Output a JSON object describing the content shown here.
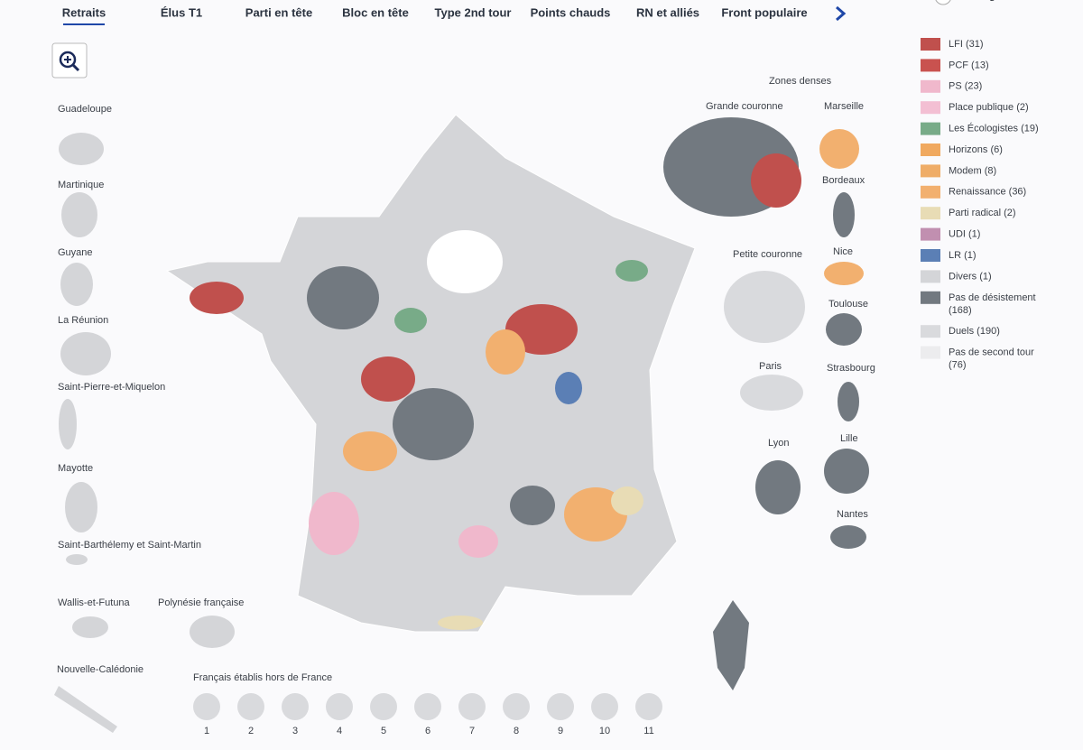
{
  "tabs": {
    "items": [
      "Retraits",
      "Élus T1",
      "Parti en tête",
      "Bloc en tête",
      "Type 2nd tour",
      "Points chauds",
      "RN et alliés",
      "Front populaire"
    ],
    "active": 0
  },
  "toggle": "Cartogramme",
  "overseas": [
    "Guadeloupe",
    "Martinique",
    "Guyane",
    "La Réunion",
    "Saint-Pierre-et-Miquelon",
    "Mayotte",
    "Saint-Barthélemy et Saint-Martin",
    "Wallis-et-Futuna",
    "Polynésie française",
    "Nouvelle-Calédonie"
  ],
  "dense": {
    "title": "Zones denses",
    "zones": [
      "Grande couronne",
      "Marseille",
      "Bordeaux",
      "Petite couronne",
      "Nice",
      "Toulouse",
      "Paris",
      "Strasbourg",
      "Lyon",
      "Lille",
      "Nantes"
    ]
  },
  "legend": [
    {
      "label": "LFI (31)",
      "color": "#c0504d"
    },
    {
      "label": "PCF (13)",
      "color": "#c9524f"
    },
    {
      "label": "PS (23)",
      "color": "#f0b8cc"
    },
    {
      "label": "Place publique (2)",
      "color": "#f3bfd3"
    },
    {
      "label": "Les Écologistes (19)",
      "color": "#78ab88"
    },
    {
      "label": "Horizons (6)",
      "color": "#f0a95f"
    },
    {
      "label": "Modem (8)",
      "color": "#efad68"
    },
    {
      "label": "Renaissance (36)",
      "color": "#f2b06f"
    },
    {
      "label": "Parti radical (2)",
      "color": "#e8dcb5"
    },
    {
      "label": "UDI (1)",
      "color": "#c18fb0"
    },
    {
      "label": "LR (1)",
      "color": "#5b7fb5"
    },
    {
      "label": "Divers (1)",
      "color": "#d4d5d8"
    },
    {
      "label": "Pas de désistement (168)",
      "color": "#727980"
    },
    {
      "label": "Duels (190)",
      "color": "#d9dadd"
    },
    {
      "label": "Pas de second tour (76)",
      "color": "#ececee"
    }
  ],
  "abroad": {
    "title": "Français établis hors de France",
    "constituencies": [
      1,
      2,
      3,
      4,
      5,
      6,
      7,
      8,
      9,
      10,
      11
    ]
  }
}
